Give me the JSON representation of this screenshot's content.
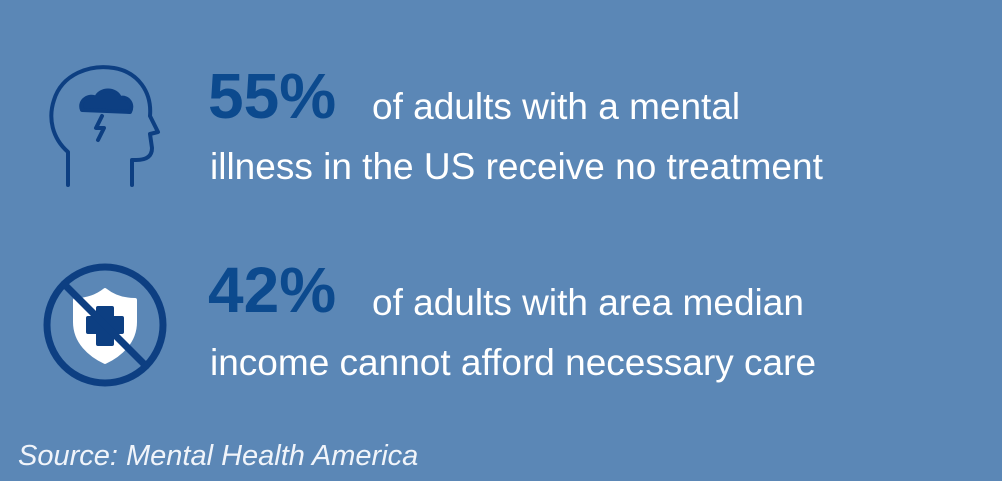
{
  "stats": [
    {
      "figure": "55%",
      "lines": [
        "of adults with a mental",
        "illness in the US receive no treatment"
      ]
    },
    {
      "figure": "42%",
      "lines": [
        "of adults with area median",
        "income cannot afford necessary care"
      ]
    }
  ],
  "source": "Source: Mental Health America"
}
